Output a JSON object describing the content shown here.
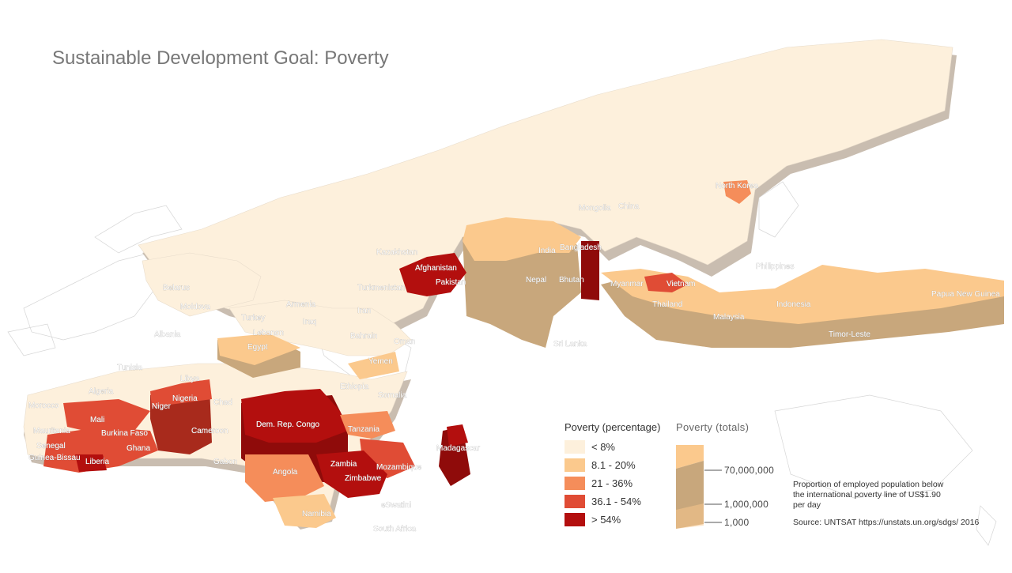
{
  "title": "Sustainable Development Goal: Poverty",
  "colors": {
    "lt8": "#fdf0dc",
    "b8_20": "#fbc98d",
    "b21_36": "#f58d5a",
    "b36_54": "#e04c35",
    "gt54": "#b30f0e",
    "extrusion": "#c9b8a3",
    "outline": "#cfcfcf"
  },
  "legend_percentage": {
    "title": "Poverty (percentage)",
    "items": [
      {
        "label": "< 8%",
        "color": "#fdf0dc"
      },
      {
        "label": "8.1 - 20%",
        "color": "#fbc98d"
      },
      {
        "label": "21 - 36%",
        "color": "#f58d5a"
      },
      {
        "label": "36.1 - 54%",
        "color": "#e04c35"
      },
      {
        "label": "> 54%",
        "color": "#b30f0e"
      }
    ]
  },
  "legend_totals": {
    "title": "Poverty (totals)",
    "ticks": [
      "70,000,000",
      "1,000,000",
      "1,000"
    ]
  },
  "note": "Proportion of employed population below the international poverty line of US$1.90 per day",
  "source": "Source: UNTSAT https://unstats.un.org/sdgs/ 2016",
  "labels": {
    "north_korea": "North Korea",
    "mongolia": "Mongolia",
    "china": "China",
    "kazakhstan": "Kazakhstan",
    "india": "India",
    "bangladesh": "Bangladesh",
    "afghanistan": "Afghanistan",
    "pakistan": "Pakistan",
    "nepal": "Nepal",
    "bhutan": "Bhutan",
    "myanmar": "Myanmar",
    "vietnam": "Vietnam",
    "philippines": "Philippines",
    "turkmenistan": "Turkmenistan",
    "belarus": "Belarus",
    "moldova": "Moldova",
    "armenia": "Armenia",
    "iran": "Iran",
    "thailand": "Thailand",
    "indonesia": "Indonesia",
    "papua_new_guinea": "Papua New Guinea",
    "malaysia": "Malaysia",
    "turkey": "Turkey",
    "iraq": "Iraq",
    "albania": "Albania",
    "lebanon": "Lebanon",
    "egypt": "Egypt",
    "bahrain": "Bahrain",
    "oman": "Oman",
    "sri_lanka": "Sri Lanka",
    "timor_leste": "Timor-Leste",
    "yemen": "Yemen",
    "tunisia": "Tunisia",
    "libya": "Libya",
    "algeria": "Algeria",
    "ethiopia": "Ethiopia",
    "nigeria": "Nigeria",
    "somalia": "Somalia",
    "morocco": "Morocco",
    "niger": "Niger",
    "chad": "Chad",
    "mali": "Mali",
    "dem_rep_congo": "Dem. Rep. Congo",
    "mauritania": "Mauritania",
    "burkina_faso": "Burkina Faso",
    "cameroon": "Cameroon",
    "tanzania": "Tanzania",
    "senegal": "Senegal",
    "ghana": "Ghana",
    "guinea_bissau": "Guinea-Bissau",
    "liberia": "Liberia",
    "gabon": "Gabon",
    "zambia": "Zambia",
    "mozambique": "Mozambique",
    "madagascar": "Madagascar",
    "angola": "Angola",
    "zimbabwe": "Zimbabwe",
    "namibia": "Namibia",
    "eswatini": "eSwatini",
    "south_africa": "South Africa"
  }
}
